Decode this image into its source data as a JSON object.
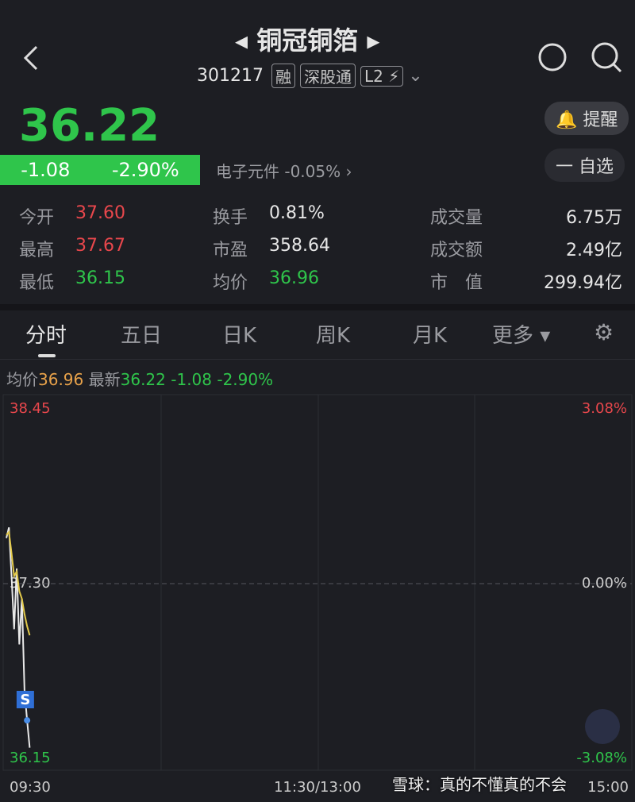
{
  "header": {
    "title": "铜冠铜箔",
    "code": "301217",
    "tags": [
      "融",
      "深股通",
      "L2"
    ]
  },
  "quote": {
    "price": "36.22",
    "change": "-1.08",
    "change_pct": "-2.90%",
    "sector": "电子元件",
    "sector_change": "-0.05%",
    "remind": "提醒",
    "watchlist": "自选"
  },
  "stats": [
    [
      {
        "label": "今开",
        "value": "37.60"
      },
      {
        "label": "换手",
        "value": "0.81%"
      },
      {
        "label": "成交量",
        "value": "6.75万"
      }
    ],
    [
      {
        "label": "最高",
        "value": "37.67"
      },
      {
        "label": "市盈",
        "value": "358.64"
      },
      {
        "label": "成交额",
        "value": "2.49亿"
      }
    ],
    [
      {
        "label": "最低",
        "value": "36.15"
      },
      {
        "label": "均价",
        "value": "36.96"
      },
      {
        "label": "市　值",
        "value": "299.94亿"
      }
    ]
  ],
  "tabs": [
    "分时",
    "五日",
    "日K",
    "周K",
    "月K",
    "更多"
  ],
  "info_bar": {
    "avg_label": "均价",
    "avg": "36.96",
    "last_label": "最新",
    "last": "36.22",
    "change": "-1.08",
    "change_pct": "-2.90%"
  },
  "chart_data": {
    "type": "line",
    "x": [
      "09:30",
      "09:31",
      "09:32",
      "09:33",
      "09:34",
      "09:35",
      "09:36",
      "09:37",
      "09:38",
      "09:39"
    ],
    "series": [
      {
        "name": "最新",
        "color": "#e8e8e8",
        "values": [
          37.6,
          37.67,
          37.35,
          37.0,
          37.4,
          36.9,
          37.2,
          36.6,
          36.4,
          36.22
        ]
      },
      {
        "name": "均价",
        "color": "#e2c94a",
        "values": [
          37.62,
          37.64,
          37.5,
          37.35,
          37.38,
          37.25,
          37.2,
          37.1,
          37.02,
          36.96
        ]
      }
    ],
    "ylim": [
      36.15,
      38.45
    ],
    "yticks": [
      38.45,
      {
        "value": 37.3,
        "label": "37.30"
      },
      36.15
    ],
    "y2lim": [
      -3.08,
      3.08
    ],
    "y2ticks": [
      {
        "value": 3.08,
        "label": "3.08%"
      },
      {
        "value": 0,
        "label": "0.00%"
      },
      {
        "value": -3.08,
        "label": "-3.08%"
      }
    ],
    "xticks": [
      "09:30",
      "11:30/13:00",
      "15:00"
    ],
    "annotations": [
      {
        "text": "S",
        "x": "09:37"
      }
    ]
  },
  "watermark": "雪球：真的不懂真的不会"
}
